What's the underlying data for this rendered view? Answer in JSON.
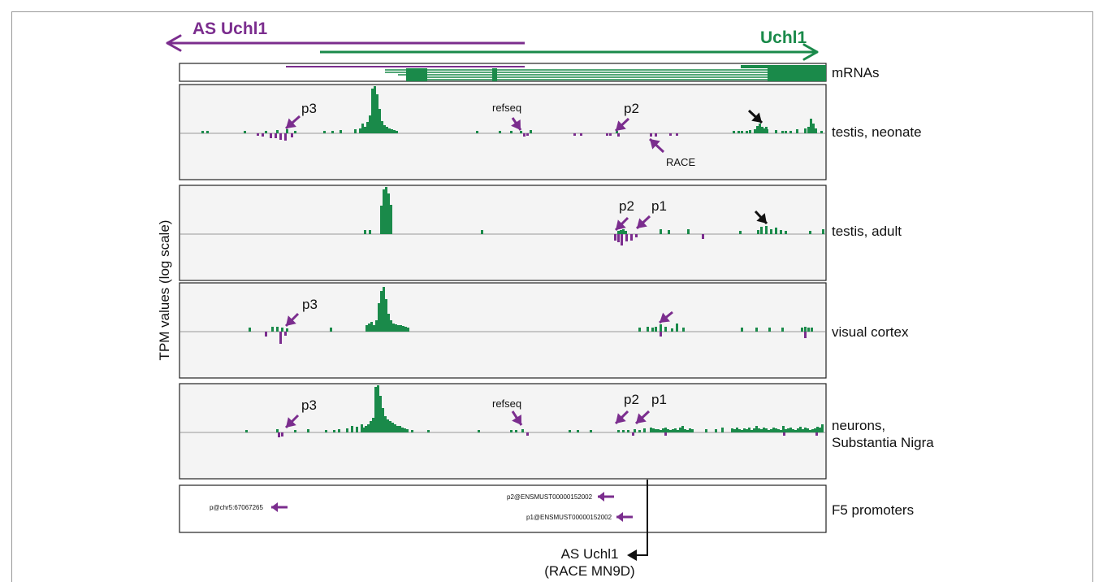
{
  "colors": {
    "sense": "#1a8a4a",
    "antisense": "#7b2d8e",
    "arrow_black": "#111111",
    "panel_bg": "#f4f4f4"
  },
  "genes": {
    "antisense_label": "AS Uchl1",
    "sense_label": "Uchl1"
  },
  "y_axis_label": "TPM values (log scale)",
  "tracks": [
    {
      "id": "mrnas",
      "label": "mRNAs"
    },
    {
      "id": "testis-neonate",
      "label": "testis, neonate",
      "annotations": [
        {
          "text": "p3"
        },
        {
          "text": "refseq"
        },
        {
          "text": "p2"
        },
        {
          "text": "RACE"
        }
      ]
    },
    {
      "id": "testis-adult",
      "label": "testis, adult",
      "annotations": [
        {
          "text": "p2"
        },
        {
          "text": "p1"
        }
      ]
    },
    {
      "id": "visual-cortex",
      "label": "visual cortex",
      "annotations": [
        {
          "text": "p3"
        }
      ]
    },
    {
      "id": "neurons-sn",
      "label": "neurons,\nSubstantia Nigra",
      "annotations": [
        {
          "text": "p3"
        },
        {
          "text": "refseq"
        },
        {
          "text": "p2"
        },
        {
          "text": "p1"
        }
      ]
    },
    {
      "id": "f5-promoters",
      "label": "F5 promoters",
      "promoters": [
        "p@chr5:67067265",
        "p2@ENSMUST00000152002",
        "p1@ENSMUST00000152002"
      ]
    }
  ],
  "race_label": "AS Uchl1\n(RACE MN9D)"
}
